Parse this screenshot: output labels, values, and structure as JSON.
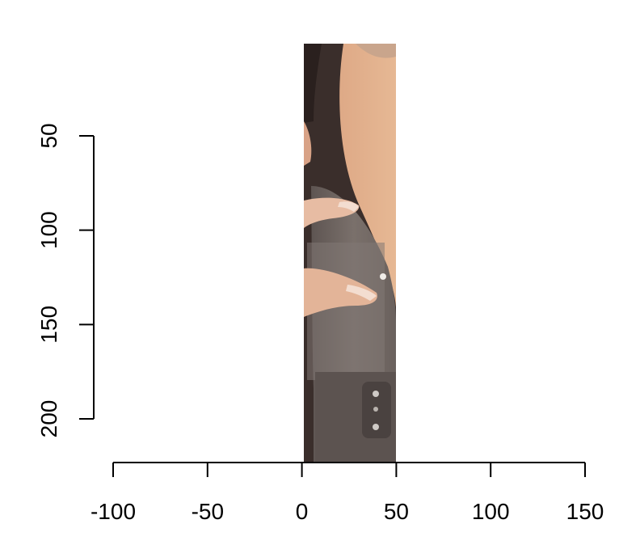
{
  "chart_data": {
    "type": "image",
    "title": "",
    "xlabel": "",
    "ylabel": "",
    "x_axis": {
      "ticks": [
        -100,
        -50,
        0,
        50,
        100,
        150
      ],
      "tick_labels": [
        "-100",
        "-50",
        "0",
        "50",
        "100",
        "150"
      ],
      "range": [
        -100,
        150
      ]
    },
    "y_axis": {
      "ticks": [
        50,
        100,
        150,
        200
      ],
      "tick_labels": [
        "50",
        "100",
        "150",
        "200"
      ],
      "range": [
        50,
        200
      ],
      "reversed": true
    },
    "raster_extent": {
      "x": [
        1,
        50
      ],
      "y": [
        1,
        223
      ]
    },
    "raster_content": "photo strip: woman's cheek and fingers holding a grey handheld device",
    "grid": false,
    "legend": "none"
  }
}
